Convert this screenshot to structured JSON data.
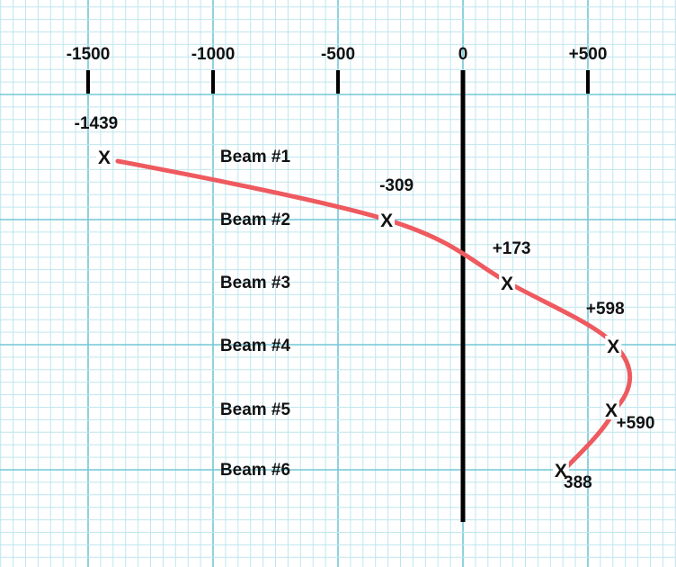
{
  "chart_data": {
    "type": "line",
    "title": "",
    "xlabel": "",
    "ylabel": "",
    "xlim": [
      -1500,
      700
    ],
    "x_ticks": [
      "-1500",
      "-1000",
      "-500",
      "0",
      "+500"
    ],
    "x_tick_values": [
      -1500,
      -1000,
      -500,
      0,
      500
    ],
    "categories": [
      "Beam #1",
      "Beam #2",
      "Beam #3",
      "Beam #4",
      "Beam #5",
      "Beam #6"
    ],
    "series": [
      {
        "values": [
          -1439,
          -309,
          173,
          598,
          590,
          388
        ],
        "value_labels": [
          "-1439",
          "-309",
          "+173",
          "+598",
          "+590",
          "388"
        ]
      }
    ],
    "marker": "X",
    "grid": true,
    "colors": {
      "line": "#ee5a5f",
      "zero_axis": "#000000",
      "grid_major": "#74c7d6",
      "grid_minor": "#bfe6ee",
      "text": "#111111"
    }
  }
}
